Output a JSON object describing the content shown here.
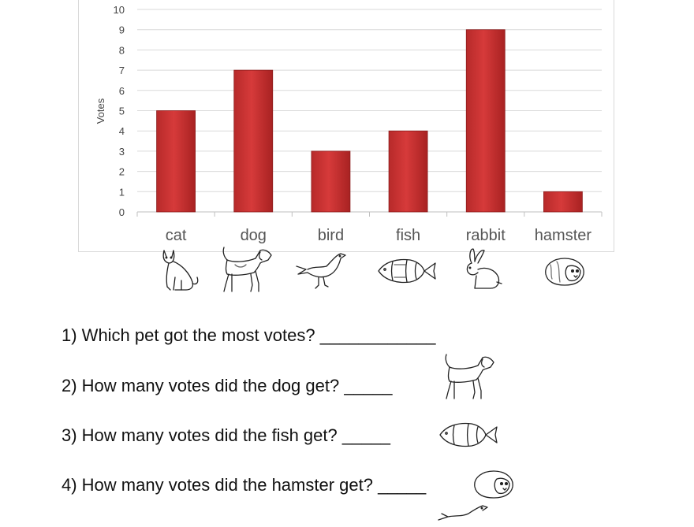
{
  "chart_data": {
    "type": "bar",
    "categories": [
      "cat",
      "dog",
      "bird",
      "fish",
      "rabbit",
      "hamster"
    ],
    "values": [
      5,
      7,
      3,
      4,
      9,
      1
    ],
    "ylabel": "Votes",
    "ylim": [
      0,
      10
    ],
    "yticks": [
      "0",
      "1",
      "2",
      "3",
      "4",
      "5",
      "6",
      "7",
      "8",
      "9",
      "10"
    ],
    "grid": true,
    "bar_color": "#d63a3a",
    "icons": [
      "cat-icon",
      "dog-icon",
      "bird-icon",
      "fish-icon",
      "rabbit-icon",
      "hamster-icon"
    ]
  },
  "questions": [
    {
      "text": "1) Which pet got the most votes? ____________",
      "icon": ""
    },
    {
      "text": "2) How many votes did the dog get? _____",
      "icon": "dog-icon"
    },
    {
      "text": "3) How many votes did the fish get? _____",
      "icon": "fish-icon"
    },
    {
      "text": "4) How many votes did the hamster get? _____",
      "icon": "hamster-icon"
    }
  ]
}
